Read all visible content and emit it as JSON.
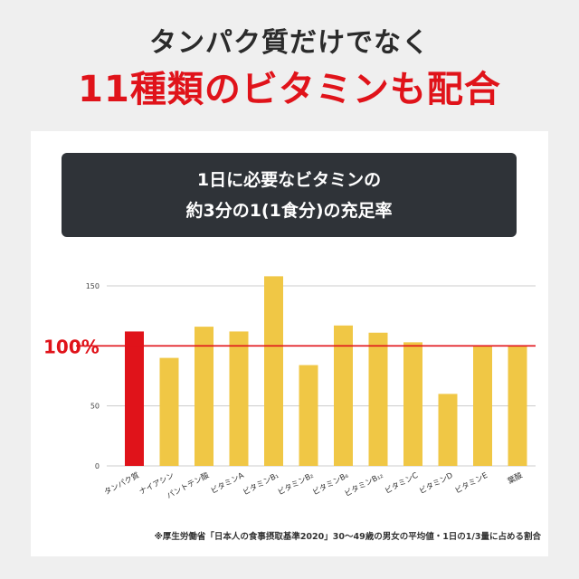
{
  "header": {
    "line1": "タンパク質だけでなく",
    "line2": "11種類のビタミンも配合"
  },
  "chart_data": {
    "type": "bar",
    "title_lines": [
      "1日に必要なビタミンの",
      "約3分の1(1食分)の充足率"
    ],
    "categories": [
      "タンパク質",
      "ナイアシン",
      "パントテン酸",
      "ビタミンA",
      "ビタミンB₁",
      "ビタミンB₂",
      "ビタミンB₆",
      "ビタミンB₁₂",
      "ビタミンC",
      "ビタミンD",
      "ビタミンE",
      "葉酸"
    ],
    "values": [
      112,
      90,
      116,
      112,
      158,
      84,
      117,
      111,
      103,
      60,
      100,
      100
    ],
    "highlight_index": 0,
    "yticks": [
      0,
      50,
      150
    ],
    "ylim": [
      0,
      160
    ],
    "reference": {
      "value": 100,
      "label": "100%"
    },
    "colors": {
      "highlight": "#e0131a",
      "bar": "#f0c745",
      "reference": "#e0131a",
      "grid": "#cccccc"
    },
    "grid": true,
    "footnote": "※厚生労働省「日本人の食事摂取基準2020」30〜49歳の男女の平均値・1日の1/3量に占める割合"
  }
}
